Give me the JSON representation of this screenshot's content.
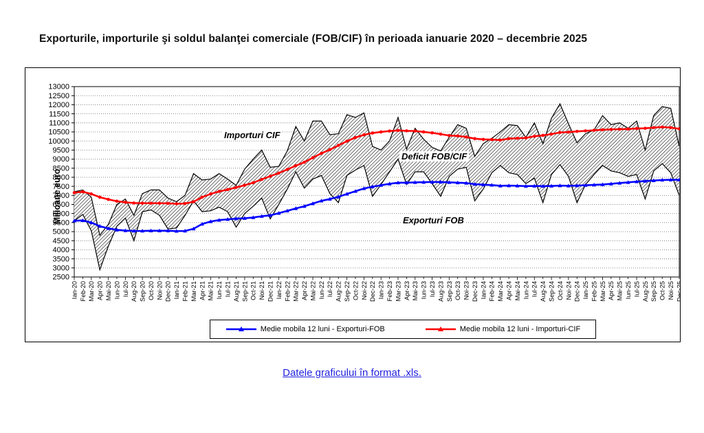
{
  "title": "Exporturile, importurile şi soldul balanţei comerciale (FOB/CIF) în perioada ianuarie 2020 – decembrie 2025",
  "link": {
    "label": "Datele graficului în format .xls."
  },
  "colors": {
    "exports_ma": "#0000ff",
    "imports_ma": "#ff0000",
    "monthly_line": "#000000",
    "link": "#2222dd"
  },
  "chart_data": {
    "type": "line",
    "title": "Exporturile, importurile şi soldul balanţei comerciale (FOB/CIF) în perioada ianuarie 2020 – decembrie 2025",
    "ylabel": "Milioane euro",
    "ylim": [
      2500,
      13000
    ],
    "ytick_step": 500,
    "yticks": [
      2500,
      3000,
      3500,
      4000,
      4500,
      5000,
      5500,
      6000,
      6500,
      7000,
      7500,
      8000,
      8500,
      9000,
      9500,
      10000,
      10500,
      11000,
      11500,
      12000,
      12500,
      13000
    ],
    "grid": "dotted-horizontal",
    "legend_position": "bottom-box",
    "x": [
      "Ian-20",
      "Feb-20",
      "Mar-20",
      "Apr-20",
      "Mai-20",
      "Iun-20",
      "Iul-20",
      "Aug-20",
      "Sep-20",
      "Oct-20",
      "Noi-20",
      "Dec-20",
      "Ian-21",
      "Feb-21",
      "Mar-21",
      "Apr-21",
      "Mai-21",
      "Iun-21",
      "Iul-21",
      "Aug-21",
      "Sep-21",
      "Oct-21",
      "Noi-21",
      "Dec-21",
      "Ian-22",
      "Feb-22",
      "Mar-22",
      "Apr-22",
      "Mai-22",
      "Iun-22",
      "Iul-22",
      "Aug-22",
      "Sep-22",
      "Oct-22",
      "Noi-22",
      "Dec-22",
      "Ian-23",
      "Feb-23",
      "Mar-23",
      "Apr-23",
      "Mai-23",
      "Iun-23",
      "Iul-23",
      "Aug-23",
      "Sep-23",
      "Oct-23",
      "Noi-23",
      "Dec-23",
      "Ian-24",
      "Feb-24",
      "Mar-24",
      "Apr-24",
      "Mai-24",
      "Iun-24",
      "Iul-24",
      "Aug-24",
      "Sep-24",
      "Oct-24",
      "Noi-24",
      "Dec-24",
      "Ian-25",
      "Feb-25",
      "Mar-25",
      "Apr-25",
      "Mai-25",
      "Iun-25",
      "Iul-25",
      "Aug-25",
      "Sep-25",
      "Oct-25",
      "Noi-25",
      "Dec-25"
    ],
    "series": [
      {
        "name": "Exporturi FOB",
        "role": "monthly",
        "color": "#000000",
        "values": [
          5600,
          5950,
          5050,
          2900,
          4200,
          5300,
          5750,
          4500,
          6100,
          6200,
          5900,
          5150,
          5200,
          5900,
          6700,
          6100,
          6150,
          6350,
          6100,
          5250,
          6000,
          6400,
          6850,
          5700,
          6500,
          7350,
          8300,
          7400,
          7900,
          8100,
          7100,
          6600,
          8100,
          8400,
          8650,
          6950,
          7600,
          8300,
          9000,
          7600,
          8300,
          8300,
          7650,
          6950,
          8050,
          8450,
          8550,
          6700,
          7350,
          8250,
          8650,
          8250,
          8150,
          7650,
          7950,
          6600,
          8150,
          8700,
          8050,
          6600,
          7600,
          8150,
          8650,
          8350,
          8250,
          8050,
          8150,
          6800,
          8350,
          8750,
          8250,
          7000
        ]
      },
      {
        "name": "Importuri CIF",
        "role": "monthly",
        "color": "#000000",
        "values": [
          7200,
          7300,
          6900,
          4800,
          5400,
          6500,
          6800,
          5900,
          7100,
          7300,
          7300,
          6850,
          6650,
          7000,
          8200,
          7850,
          7900,
          8200,
          7900,
          7550,
          8450,
          9000,
          9500,
          8550,
          8600,
          9450,
          10800,
          10000,
          11100,
          11100,
          10350,
          10400,
          11450,
          11300,
          11550,
          9700,
          9500,
          10000,
          11300,
          9550,
          10700,
          10100,
          9650,
          9450,
          10200,
          10900,
          10700,
          9150,
          9850,
          10150,
          10500,
          10900,
          10850,
          10200,
          11000,
          9850,
          11250,
          12050,
          10950,
          9900,
          10400,
          10600,
          11400,
          10900,
          11000,
          10700,
          11100,
          9500,
          11400,
          11900,
          11800,
          9700
        ]
      },
      {
        "name": "Medie mobila 12 luni - Exporturi-FOB",
        "role": "moving-average",
        "color": "#0000ff",
        "marker": "triangle",
        "values": [
          5600,
          5620,
          5500,
          5300,
          5180,
          5100,
          5060,
          5040,
          5040,
          5050,
          5050,
          5050,
          5030,
          5040,
          5160,
          5420,
          5560,
          5640,
          5680,
          5720,
          5740,
          5780,
          5850,
          5900,
          6020,
          6150,
          6280,
          6400,
          6550,
          6700,
          6800,
          6920,
          7080,
          7230,
          7380,
          7480,
          7560,
          7640,
          7700,
          7700,
          7720,
          7730,
          7740,
          7740,
          7720,
          7700,
          7680,
          7620,
          7590,
          7570,
          7530,
          7540,
          7530,
          7510,
          7520,
          7510,
          7520,
          7540,
          7530,
          7540,
          7560,
          7580,
          7600,
          7640,
          7680,
          7720,
          7760,
          7790,
          7820,
          7850,
          7860,
          7860
        ]
      },
      {
        "name": "Medie mobila 12 luni - Importuri-CIF",
        "role": "moving-average",
        "color": "#ff0000",
        "marker": "dot",
        "values": [
          7150,
          7200,
          7080,
          6900,
          6780,
          6680,
          6620,
          6580,
          6570,
          6570,
          6570,
          6560,
          6540,
          6550,
          6650,
          6900,
          7080,
          7220,
          7320,
          7440,
          7560,
          7700,
          7880,
          8060,
          8230,
          8430,
          8640,
          8830,
          9080,
          9320,
          9520,
          9760,
          9990,
          10190,
          10340,
          10440,
          10500,
          10550,
          10580,
          10560,
          10550,
          10500,
          10450,
          10380,
          10300,
          10280,
          10220,
          10130,
          10090,
          10080,
          10050,
          10130,
          10150,
          10170,
          10260,
          10310,
          10380,
          10470,
          10490,
          10530,
          10560,
          10590,
          10620,
          10640,
          10650,
          10660,
          10690,
          10700,
          10740,
          10770,
          10740,
          10670
        ]
      }
    ],
    "band": {
      "between": [
        "Importuri CIF",
        "Exporturi FOB"
      ],
      "fill": "diagonal-hatch",
      "meaning": "Deficit FOB/CIF"
    },
    "annotations": [
      {
        "text": "Importuri CIF"
      },
      {
        "text": "Deficit FOB/CIF"
      },
      {
        "text": "Exporturi FOB"
      }
    ]
  }
}
